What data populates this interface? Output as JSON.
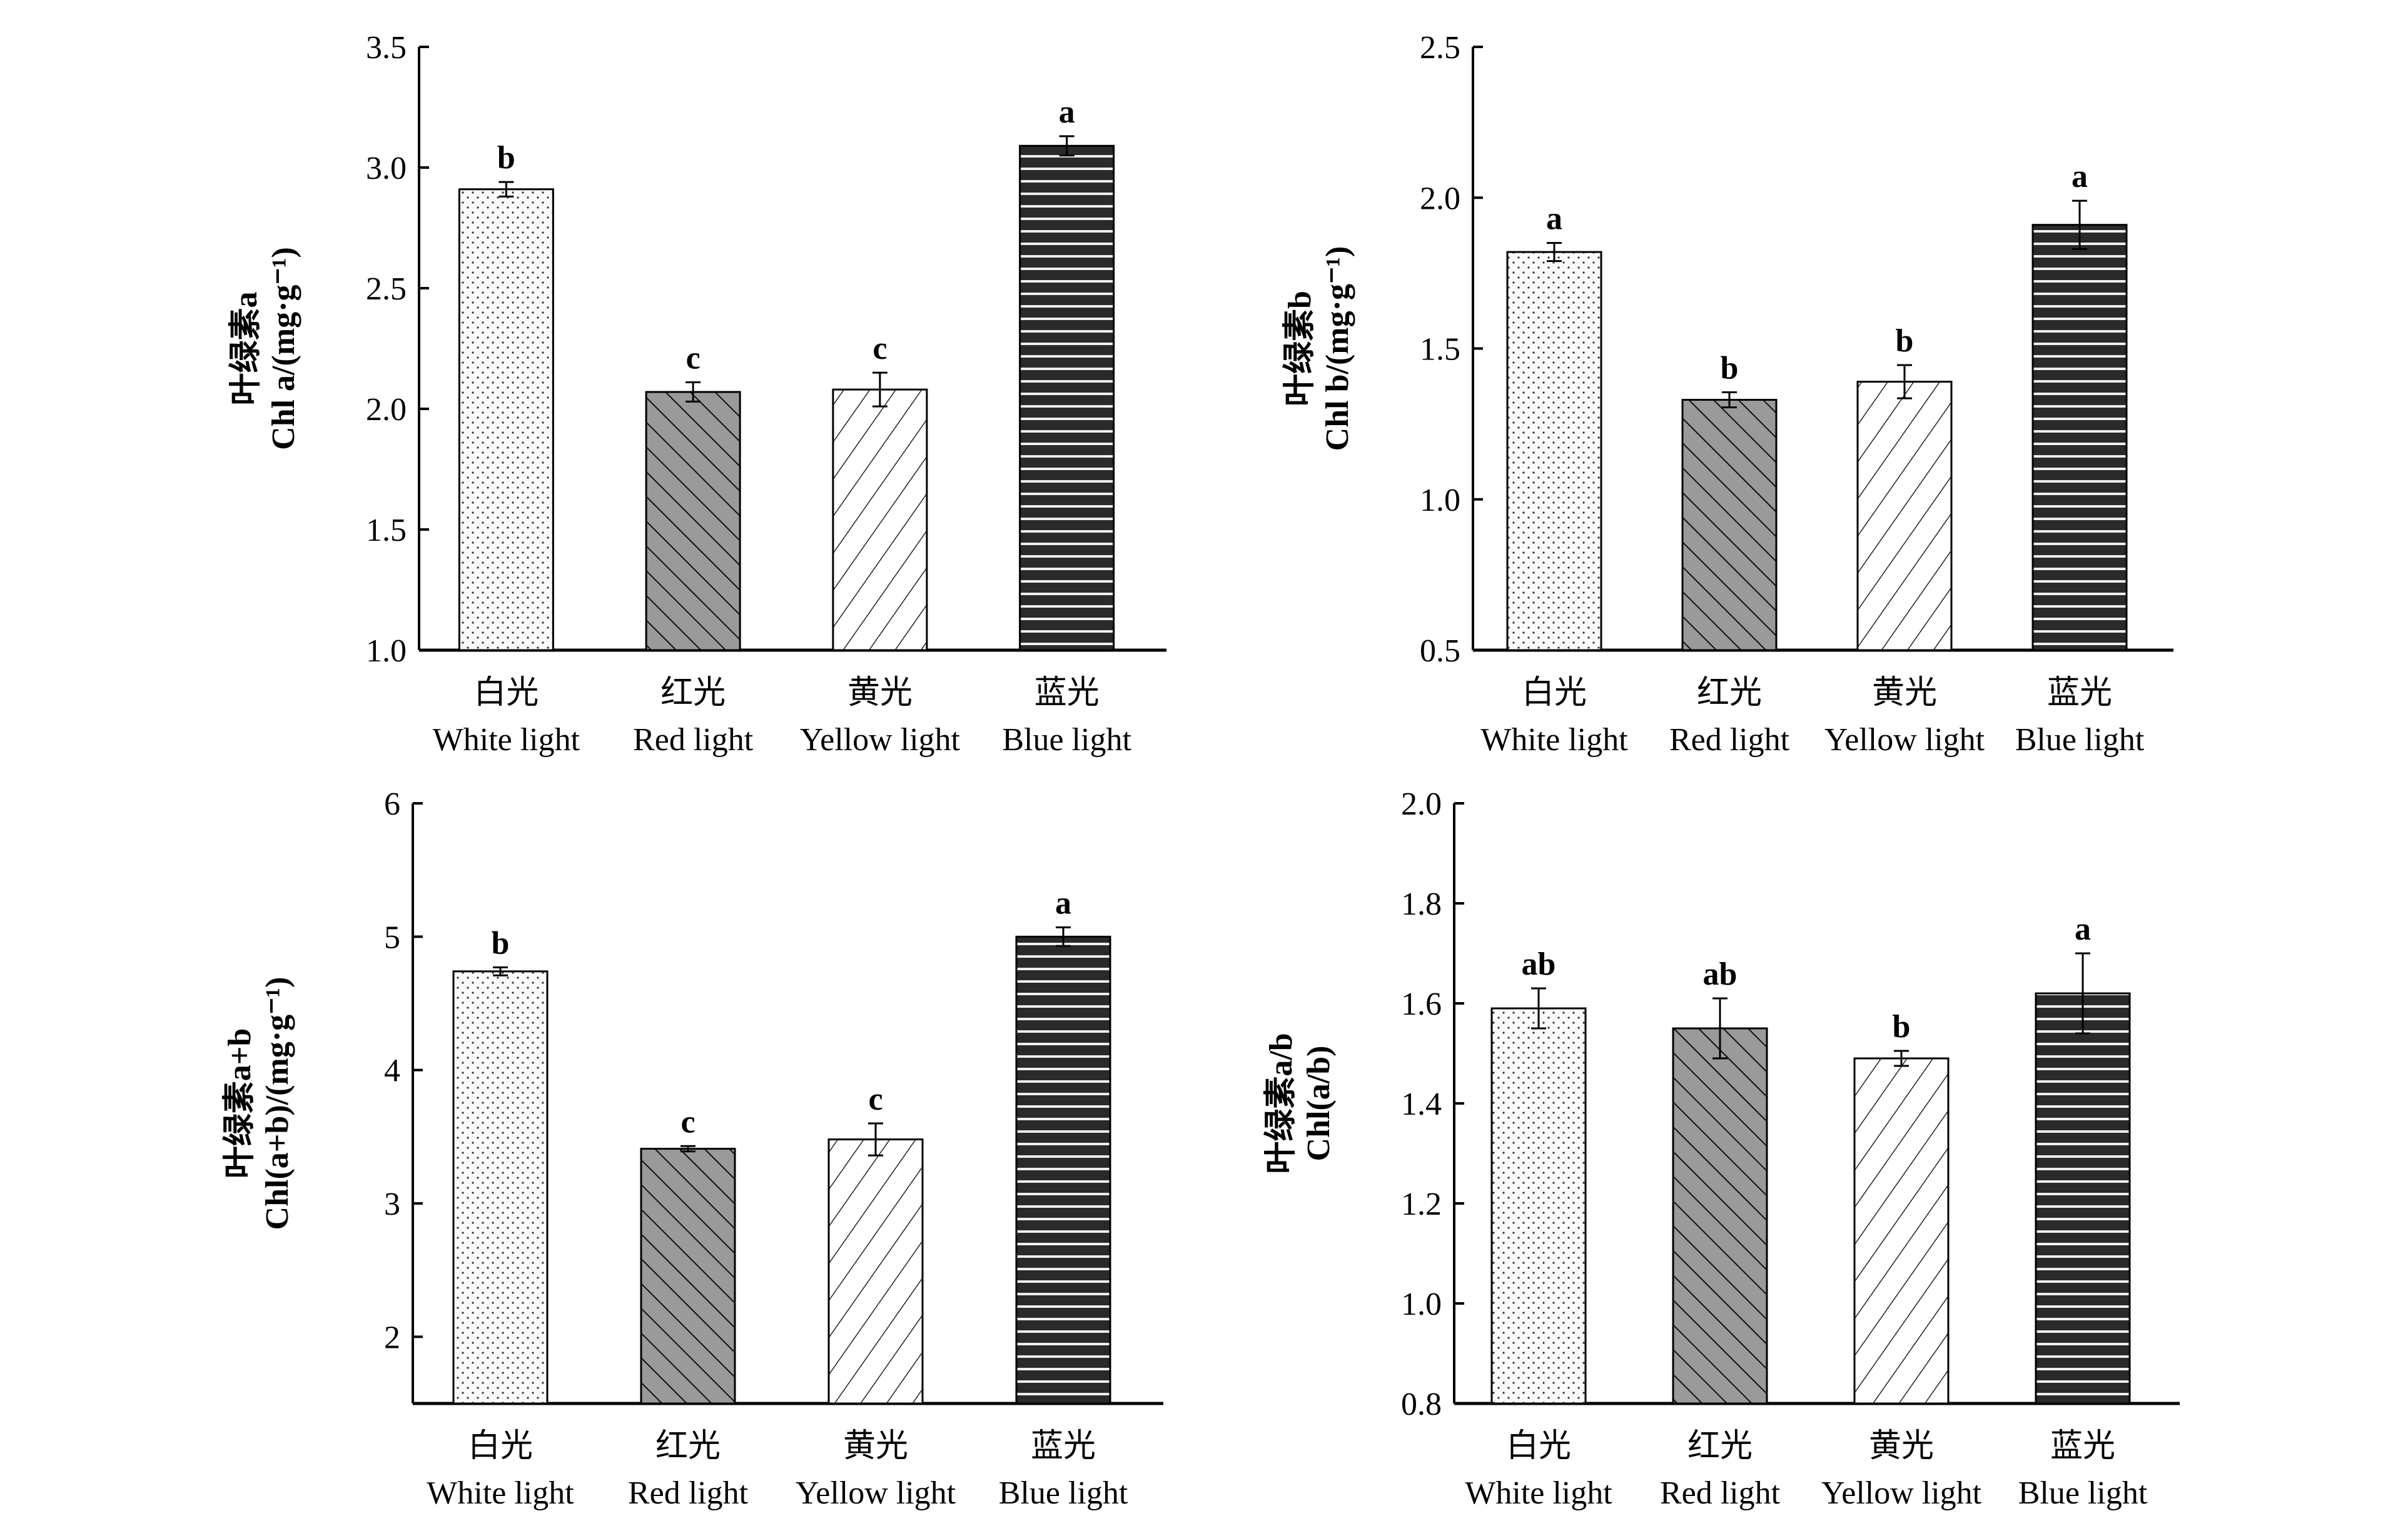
{
  "chart_data": [
    {
      "type": "bar",
      "title": "",
      "ylabel_cn": "叶绿素a",
      "ylabel": "Chl a/(mg·g⁻¹)",
      "categories_cn": [
        "白光",
        "红光",
        "黄光",
        "蓝光"
      ],
      "categories": [
        "White light",
        "Red light",
        "Yellow light",
        "Blue light"
      ],
      "values": [
        2.91,
        2.07,
        2.08,
        3.09
      ],
      "errors": [
        0.03,
        0.04,
        0.07,
        0.04
      ],
      "significance": [
        "b",
        "c",
        "c",
        "a"
      ],
      "ylim": [
        1.0,
        3.5
      ],
      "yticks": [
        "1.0",
        "1.5",
        "2.0",
        "2.5",
        "3.0",
        "3.5"
      ],
      "grid": false
    },
    {
      "type": "bar",
      "title": "",
      "ylabel_cn": "叶绿素b",
      "ylabel": "Chl b/(mg·g⁻¹)",
      "categories_cn": [
        "白光",
        "红光",
        "黄光",
        "蓝光"
      ],
      "categories": [
        "White light",
        "Red light",
        "Yellow light",
        "Blue light"
      ],
      "values": [
        1.82,
        1.33,
        1.39,
        1.91
      ],
      "errors": [
        0.03,
        0.025,
        0.055,
        0.08
      ],
      "significance": [
        "a",
        "b",
        "b",
        "a"
      ],
      "ylim": [
        0.5,
        2.5
      ],
      "yticks": [
        "0.5",
        "1.0",
        "1.5",
        "2.0",
        "2.5"
      ],
      "grid": false
    },
    {
      "type": "bar",
      "title": "",
      "ylabel_cn": "叶绿素a+b",
      "ylabel": "Chl(a+b)/(mg·g⁻¹)",
      "categories_cn": [
        "白光",
        "红光",
        "黄光",
        "蓝光"
      ],
      "categories": [
        "White light",
        "Red light",
        "Yellow light",
        "Blue light"
      ],
      "values": [
        4.74,
        3.41,
        3.48,
        5.0
      ],
      "errors": [
        0.03,
        0.02,
        0.12,
        0.07
      ],
      "significance": [
        "b",
        "c",
        "c",
        "a"
      ],
      "ylim": [
        1.5,
        6
      ],
      "yticks": [
        "2",
        "3",
        "4",
        "5",
        "6"
      ],
      "grid": false
    },
    {
      "type": "bar",
      "title": "",
      "ylabel_cn": "叶绿素a/b",
      "ylabel": "Chl(a/b)",
      "categories_cn": [
        "白光",
        "红光",
        "黄光",
        "蓝光"
      ],
      "categories": [
        "White light",
        "Red light",
        "Yellow light",
        "Blue light"
      ],
      "values": [
        1.59,
        1.55,
        1.49,
        1.62
      ],
      "errors": [
        0.04,
        0.06,
        0.015,
        0.08
      ],
      "significance": [
        "ab",
        "ab",
        "b",
        "a"
      ],
      "ylim": [
        0.8,
        2.0
      ],
      "yticks": [
        "0.8",
        "1.0",
        "1.2",
        "1.4",
        "1.6",
        "1.8",
        "2.0"
      ],
      "grid": false
    }
  ]
}
